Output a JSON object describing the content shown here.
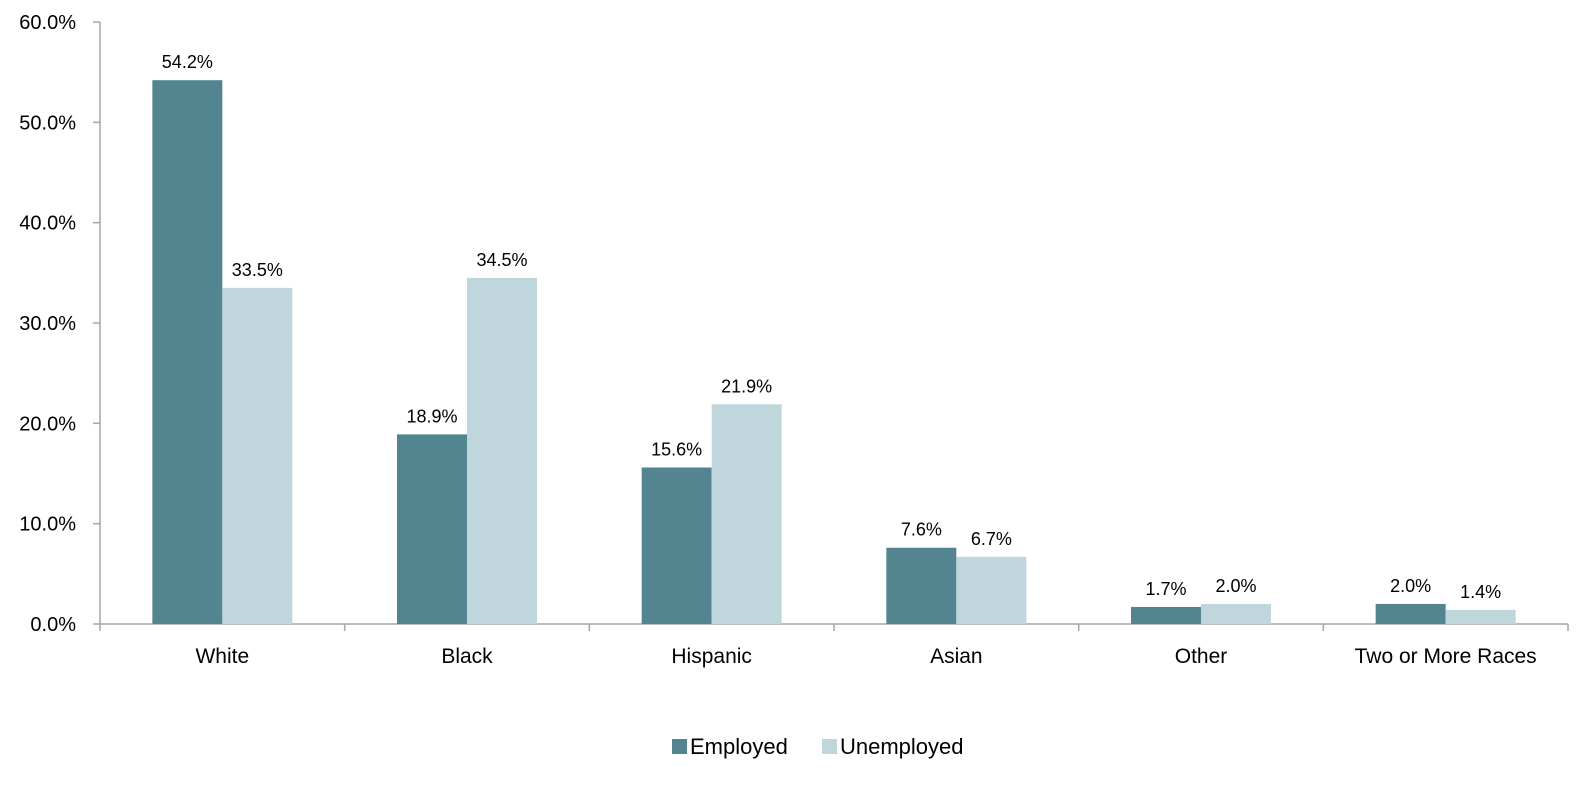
{
  "chart_data": {
    "type": "bar",
    "categories": [
      "White",
      "Black",
      "Hispanic",
      "Asian",
      "Other",
      "Two or More Races"
    ],
    "series": [
      {
        "name": "Employed",
        "values": [
          54.2,
          18.9,
          15.6,
          7.6,
          1.7,
          2.0
        ],
        "labels": [
          "54.2%",
          "18.9%",
          "15.6%",
          "7.6%",
          "1.7%",
          "2.0%"
        ],
        "color": "#538590"
      },
      {
        "name": "Unemployed",
        "values": [
          33.5,
          34.5,
          21.9,
          6.7,
          2.0,
          1.4
        ],
        "labels": [
          "33.5%",
          "34.5%",
          "21.9%",
          "6.7%",
          "2.0%",
          "1.4%"
        ],
        "color": "#c0d6dd"
      }
    ],
    "yticks": [
      "0.0%",
      "10.0%",
      "20.0%",
      "30.0%",
      "40.0%",
      "50.0%",
      "60.0%"
    ],
    "ylim": [
      0,
      60
    ],
    "title": "",
    "xlabel": "",
    "ylabel": "",
    "grid": false,
    "legend_position": "bottom-center",
    "axis_color": "#a6a6a6"
  }
}
